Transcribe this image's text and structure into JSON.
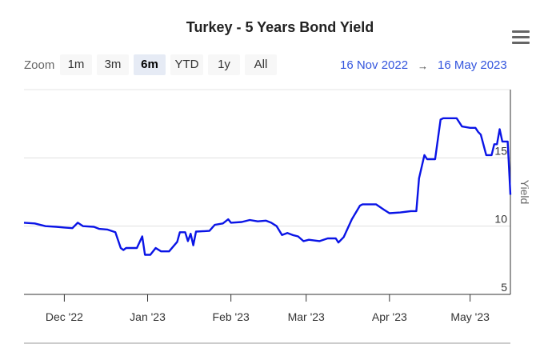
{
  "title": "Turkey - 5 Years Bond Yield",
  "zoom": {
    "label": "Zoom",
    "buttons": [
      "1m",
      "3m",
      "6m",
      "YTD",
      "1y",
      "All"
    ],
    "selected": "6m"
  },
  "range": {
    "from": "16 Nov 2022",
    "arrow": "→",
    "to": "16 May 2023"
  },
  "colors": {
    "series": "#0a14e6",
    "range_text": "#3355dd"
  },
  "icons": {
    "menu": "hamburger-menu-icon"
  },
  "chart_data": {
    "type": "line",
    "title": "Turkey - 5 Years Bond Yield",
    "xlabel": "",
    "ylabel": "Yield",
    "xlim": [
      "2022-11-16",
      "2023-05-16"
    ],
    "ylim": [
      5,
      20
    ],
    "yticks": [
      5,
      10,
      15
    ],
    "xticks": [
      {
        "date": "2022-12-01",
        "label": "Dec '22"
      },
      {
        "date": "2023-01-01",
        "label": "Jan '23"
      },
      {
        "date": "2023-02-01",
        "label": "Feb '23"
      },
      {
        "date": "2023-03-01",
        "label": "Mar '23"
      },
      {
        "date": "2023-04-01",
        "label": "Apr '23"
      },
      {
        "date": "2023-05-01",
        "label": "May '23"
      }
    ],
    "grid": true,
    "legend": "none",
    "series": [
      {
        "points": [
          [
            "2022-11-16",
            10.25
          ],
          [
            "2022-11-20",
            10.2
          ],
          [
            "2022-11-24",
            10.0
          ],
          [
            "2022-11-28",
            9.95
          ],
          [
            "2022-12-01",
            9.9
          ],
          [
            "2022-12-04",
            9.85
          ],
          [
            "2022-12-06",
            10.25
          ],
          [
            "2022-12-08",
            10.0
          ],
          [
            "2022-12-12",
            9.95
          ],
          [
            "2022-12-14",
            9.8
          ],
          [
            "2022-12-17",
            9.75
          ],
          [
            "2022-12-20",
            9.55
          ],
          [
            "2022-12-22",
            8.4
          ],
          [
            "2022-12-23",
            8.25
          ],
          [
            "2022-12-24",
            8.4
          ],
          [
            "2022-12-28",
            8.4
          ],
          [
            "2022-12-30",
            9.25
          ],
          [
            "2022-12-31",
            7.9
          ],
          [
            "2023-01-02",
            7.9
          ],
          [
            "2023-01-04",
            8.4
          ],
          [
            "2023-01-06",
            8.15
          ],
          [
            "2023-01-09",
            8.15
          ],
          [
            "2023-01-12",
            8.85
          ],
          [
            "2023-01-13",
            9.55
          ],
          [
            "2023-01-15",
            9.55
          ],
          [
            "2023-01-16",
            8.9
          ],
          [
            "2023-01-17",
            9.45
          ],
          [
            "2023-01-18",
            8.6
          ],
          [
            "2023-01-19",
            9.6
          ],
          [
            "2023-01-24",
            9.65
          ],
          [
            "2023-01-26",
            10.1
          ],
          [
            "2023-01-29",
            10.2
          ],
          [
            "2023-01-31",
            10.5
          ],
          [
            "2023-02-01",
            10.25
          ],
          [
            "2023-02-05",
            10.3
          ],
          [
            "2023-02-08",
            10.45
          ],
          [
            "2023-02-11",
            10.35
          ],
          [
            "2023-02-14",
            10.4
          ],
          [
            "2023-02-16",
            10.25
          ],
          [
            "2023-02-18",
            10.0
          ],
          [
            "2023-02-20",
            9.35
          ],
          [
            "2023-02-22",
            9.5
          ],
          [
            "2023-02-24",
            9.35
          ],
          [
            "2023-02-26",
            9.25
          ],
          [
            "2023-02-28",
            8.9
          ],
          [
            "2023-03-02",
            9.0
          ],
          [
            "2023-03-06",
            8.9
          ],
          [
            "2023-03-09",
            9.1
          ],
          [
            "2023-03-12",
            9.1
          ],
          [
            "2023-03-13",
            8.8
          ],
          [
            "2023-03-15",
            9.2
          ],
          [
            "2023-03-18",
            10.5
          ],
          [
            "2023-03-21",
            11.5
          ],
          [
            "2023-03-22",
            11.6
          ],
          [
            "2023-03-27",
            11.6
          ],
          [
            "2023-03-30",
            11.2
          ],
          [
            "2023-04-01",
            10.95
          ],
          [
            "2023-04-05",
            11.0
          ],
          [
            "2023-04-09",
            11.1
          ],
          [
            "2023-04-11",
            11.1
          ],
          [
            "2023-04-12",
            13.5
          ],
          [
            "2023-04-14",
            15.2
          ],
          [
            "2023-04-15",
            14.9
          ],
          [
            "2023-04-18",
            14.9
          ],
          [
            "2023-04-20",
            17.8
          ],
          [
            "2023-04-21",
            17.9
          ],
          [
            "2023-04-26",
            17.9
          ],
          [
            "2023-04-28",
            17.3
          ],
          [
            "2023-05-01",
            17.2
          ],
          [
            "2023-05-03",
            17.2
          ],
          [
            "2023-05-04",
            16.9
          ],
          [
            "2023-05-05",
            16.7
          ],
          [
            "2023-05-07",
            15.2
          ],
          [
            "2023-05-09",
            15.2
          ],
          [
            "2023-05-10",
            16.0
          ],
          [
            "2023-05-11",
            16.0
          ],
          [
            "2023-05-12",
            17.1
          ],
          [
            "2023-05-13",
            16.2
          ],
          [
            "2023-05-15",
            16.2
          ],
          [
            "2023-05-16",
            12.3
          ]
        ]
      }
    ]
  }
}
